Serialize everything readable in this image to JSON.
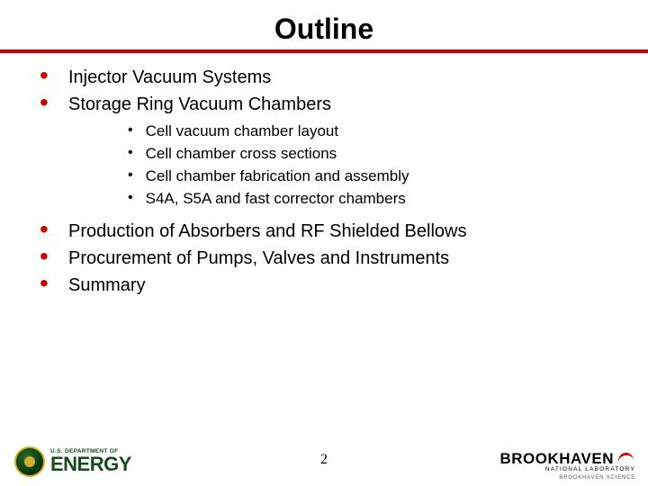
{
  "title": "Outline",
  "accent_color": "#cc0000",
  "bullets": [
    {
      "text": "Injector Vacuum Systems"
    },
    {
      "text": "Storage Ring Vacuum Chambers"
    }
  ],
  "sub_bullets": [
    {
      "text": "Cell vacuum chamber layout"
    },
    {
      "text": "Cell chamber cross sections"
    },
    {
      "text": "Cell chamber fabrication and assembly"
    },
    {
      "text": "S4A, S5A and fast corrector chambers"
    }
  ],
  "bullets2": [
    {
      "text": "Production of Absorbers and RF Shielded Bellows"
    },
    {
      "text": "Procurement of Pumps, Valves and Instruments"
    },
    {
      "text": "Summary"
    }
  ],
  "page_number": "2",
  "footer": {
    "doe_small": "U.S. DEPARTMENT OF",
    "doe_big": "ENERGY",
    "bnl_big": "BROOKHAVEN",
    "bnl_sub": "NATIONAL LABORATORY",
    "bnl_sci": "BROOKHAVEN SCIENCE"
  }
}
